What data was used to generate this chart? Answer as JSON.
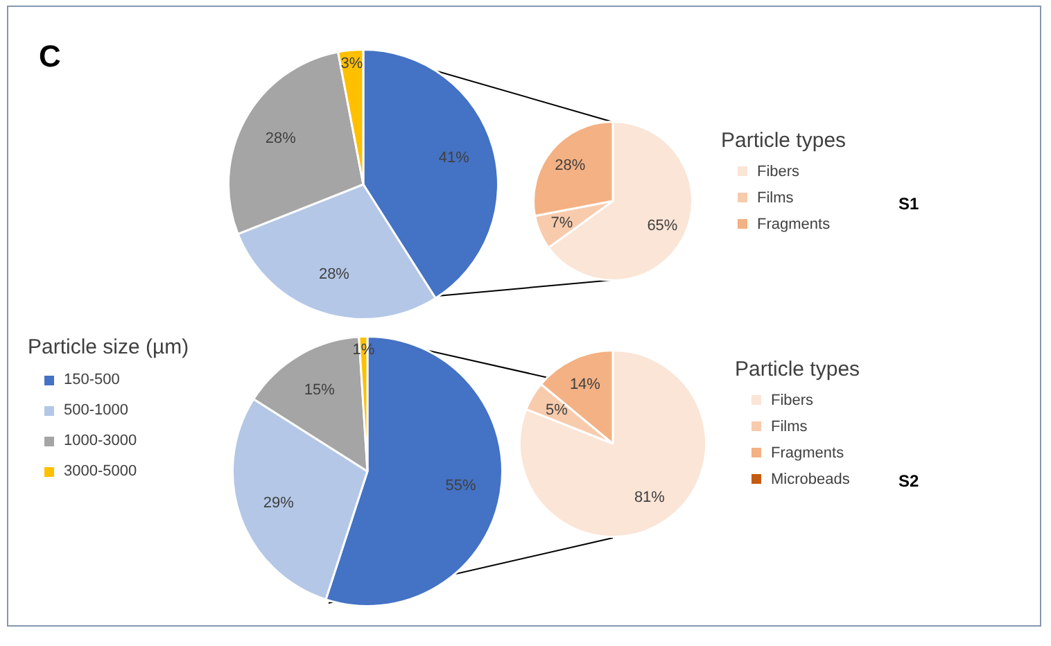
{
  "chart_data": [
    {
      "type": "pie",
      "annotations": [
        "C"
      ],
      "categories": [
        null,
        null,
        null,
        null
      ],
      "values": [
        41,
        28,
        28,
        3
      ],
      "value_labels": [
        "41%",
        "28%",
        "28%",
        "3%"
      ],
      "colors": [
        "#4472c4",
        "#b4c7e7",
        "#a5a5a5",
        "#ffc000"
      ]
    },
    {
      "type": "pie",
      "annotations": [
        "S1"
      ],
      "legend_title": "Particle types",
      "legend": "right",
      "categories": [
        "Fibers",
        "Films",
        "Fragments"
      ],
      "values": [
        65,
        7,
        28
      ],
      "value_labels": [
        "65%",
        "7%",
        "28%"
      ],
      "colors": [
        "#fbe5d6",
        "#f8cbad",
        "#f4b183"
      ]
    },
    {
      "type": "pie",
      "legend_title": "Particle size (µm)",
      "legend": "left",
      "categories": [
        "150-500",
        "500-1000",
        "1000-3000",
        "3000-5000"
      ],
      "values": [
        55,
        29,
        15,
        1
      ],
      "value_labels": [
        "55%",
        "29%",
        "15%",
        "1%"
      ],
      "colors": [
        "#4472c4",
        "#b4c7e7",
        "#a5a5a5",
        "#ffc000"
      ]
    },
    {
      "type": "pie",
      "annotations": [
        "S2"
      ],
      "legend_title": "Particle types",
      "legend": "right",
      "categories": [
        "Fibers",
        "Films",
        "Fragments",
        "Microbeads"
      ],
      "values": [
        81,
        5,
        14,
        0
      ],
      "value_labels": [
        "81%",
        "5%",
        "14%",
        null
      ],
      "colors": [
        "#fbe5d6",
        "#f8cbad",
        "#f4b183",
        "#c55a11"
      ]
    }
  ]
}
